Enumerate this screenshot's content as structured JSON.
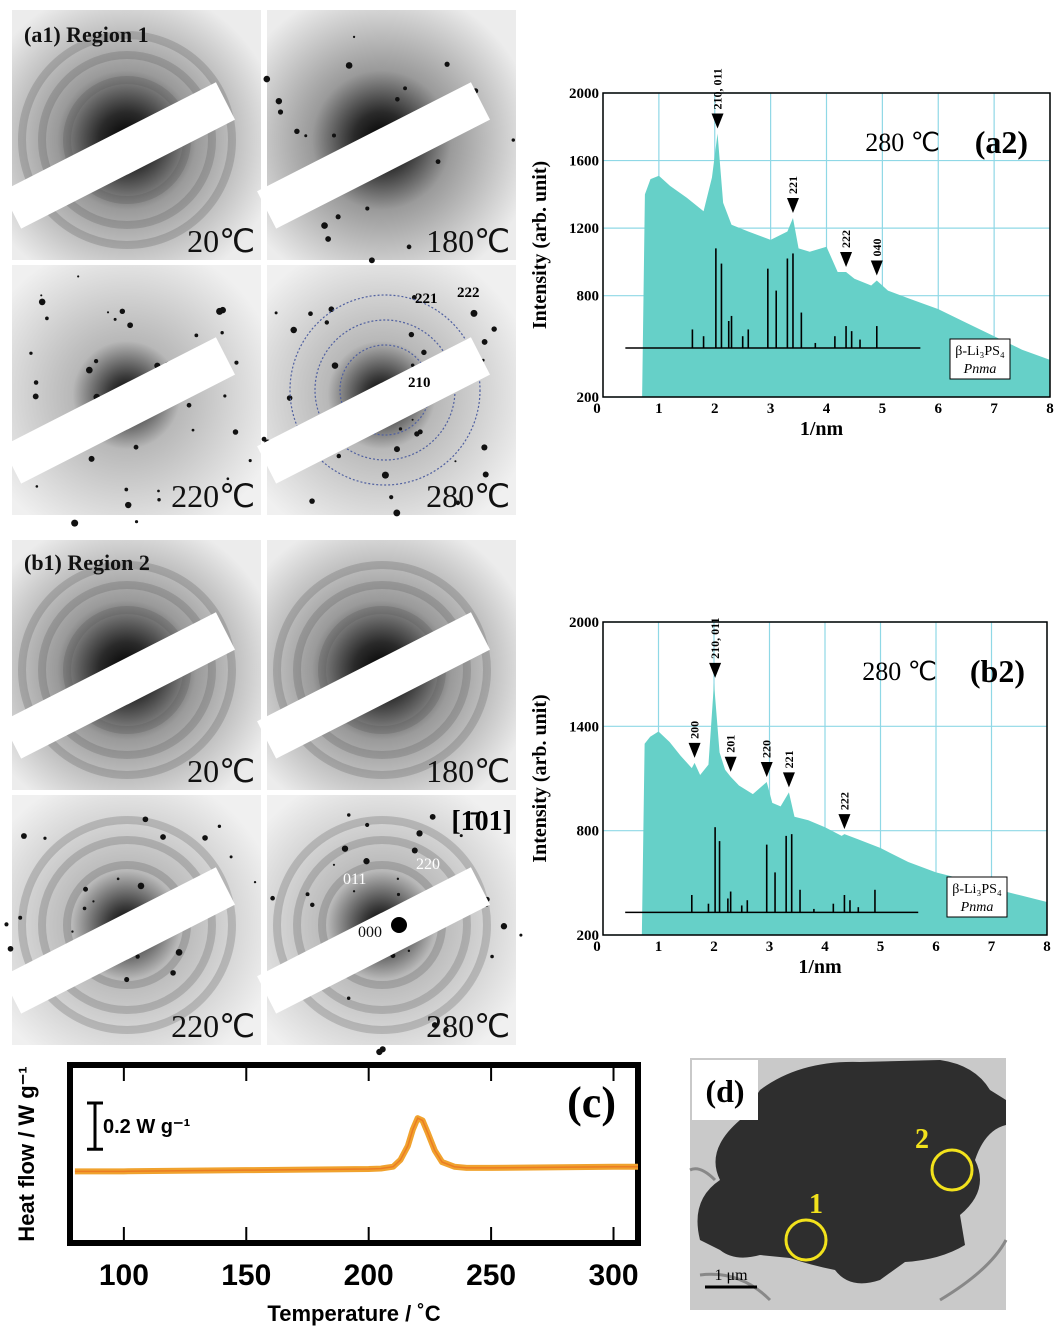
{
  "diffraction": {
    "region1": {
      "label": "(a1) Region 1",
      "temperatures": [
        "20℃",
        "180℃",
        "220℃",
        "280℃"
      ],
      "ring_labels": [
        "221",
        "222",
        "210"
      ]
    },
    "region2": {
      "label": "(b1) Region 2",
      "temperatures": [
        "20℃",
        "180℃",
        "220℃",
        "280℃"
      ],
      "zone_axis": "[1̄01]",
      "spot_labels": [
        "011",
        "220",
        "000"
      ]
    }
  },
  "chart_data": [
    {
      "type": "spectrum",
      "panel_label": "(a2)",
      "condition": "280 ℃",
      "xlabel": "1/nm",
      "ylabel": "Intensity (arb. unit)",
      "xlim": [
        0,
        8
      ],
      "ylim": [
        200,
        2000
      ],
      "xticks": [
        0,
        1,
        2,
        3,
        4,
        5,
        6,
        7,
        8
      ],
      "yticks": [
        200,
        800,
        1200,
        1600,
        2000
      ],
      "grid": true,
      "grid_color": "#8fd8e6",
      "color": "#66d0c8",
      "x": [
        0.7,
        0.75,
        0.85,
        1.0,
        1.2,
        1.5,
        1.8,
        1.95,
        2.05,
        2.15,
        2.3,
        2.6,
        3.0,
        3.3,
        3.4,
        3.5,
        3.7,
        4.0,
        4.2,
        4.35,
        4.5,
        4.8,
        4.9,
        5.1,
        5.5,
        6.0,
        6.5,
        7.0,
        7.5,
        8.0
      ],
      "values": [
        200,
        1400,
        1490,
        1510,
        1450,
        1380,
        1300,
        1500,
        1760,
        1350,
        1220,
        1180,
        1130,
        1180,
        1260,
        1080,
        1060,
        1090,
        940,
        940,
        900,
        860,
        890,
        830,
        780,
        720,
        640,
        560,
        480,
        420
      ],
      "reference": {
        "name": "β-Li₃PS₄",
        "space_group": "Pnma",
        "baseline": 490,
        "x": [
          1.6,
          1.8,
          2.02,
          2.12,
          2.25,
          2.3,
          2.5,
          2.6,
          2.95,
          3.1,
          3.3,
          3.4,
          3.55,
          3.8,
          4.15,
          4.35,
          4.45,
          4.6,
          4.9
        ],
        "values": [
          600,
          560,
          1080,
          990,
          650,
          680,
          560,
          600,
          960,
          830,
          1020,
          1050,
          700,
          520,
          560,
          620,
          590,
          540,
          620
        ]
      },
      "peaks": [
        {
          "label": "210, 011",
          "x": 2.05,
          "y": 1760
        },
        {
          "label": "221",
          "x": 3.4,
          "y": 1260
        },
        {
          "label": "222",
          "x": 4.35,
          "y": 940
        },
        {
          "label": "040",
          "x": 4.9,
          "y": 890
        }
      ]
    },
    {
      "type": "spectrum",
      "panel_label": "(b2)",
      "condition": "280 ℃",
      "xlabel": "1/nm",
      "ylabel": "Intensity (arb. unit)",
      "xlim": [
        0,
        8
      ],
      "ylim": [
        200,
        2000
      ],
      "xticks": [
        0,
        1,
        2,
        3,
        4,
        5,
        6,
        7,
        8
      ],
      "yticks": [
        200,
        800,
        1400,
        2000
      ],
      "grid": true,
      "grid_color": "#8fd8e6",
      "color": "#66d0c8",
      "x": [
        0.7,
        0.75,
        0.85,
        1.0,
        1.2,
        1.4,
        1.6,
        1.65,
        1.75,
        1.9,
        2.0,
        2.1,
        2.2,
        2.3,
        2.45,
        2.7,
        2.95,
        3.05,
        3.2,
        3.35,
        3.45,
        3.7,
        4.0,
        4.3,
        4.35,
        4.6,
        5.0,
        5.5,
        6.0,
        6.5,
        7.0,
        7.5,
        8.0
      ],
      "values": [
        200,
        1300,
        1340,
        1370,
        1310,
        1230,
        1160,
        1190,
        1120,
        1180,
        1650,
        1250,
        1150,
        1110,
        1060,
        1010,
        1080,
        960,
        940,
        1020,
        880,
        860,
        820,
        770,
        780,
        750,
        700,
        620,
        560,
        520,
        470,
        430,
        390
      ],
      "reference": {
        "name": "β-Li₃PS₄",
        "space_group": "Pnma",
        "baseline": 330,
        "x": [
          1.6,
          1.9,
          2.02,
          2.1,
          2.25,
          2.3,
          2.5,
          2.6,
          2.95,
          3.1,
          3.3,
          3.4,
          3.55,
          3.8,
          4.15,
          4.35,
          4.45,
          4.6,
          4.9
        ],
        "values": [
          430,
          380,
          820,
          740,
          410,
          450,
          370,
          400,
          720,
          560,
          770,
          780,
          460,
          350,
          380,
          430,
          400,
          360,
          460
        ]
      },
      "peaks": [
        {
          "label": "200",
          "x": 1.65,
          "y": 1190
        },
        {
          "label": "210, 011",
          "x": 2.02,
          "y": 1650
        },
        {
          "label": "201",
          "x": 2.3,
          "y": 1110
        },
        {
          "label": "220",
          "x": 2.95,
          "y": 1080
        },
        {
          "label": "221",
          "x": 3.35,
          "y": 1020
        },
        {
          "label": "222",
          "x": 4.35,
          "y": 780
        }
      ]
    },
    {
      "type": "dsc",
      "panel_label": "(c)",
      "xlabel": "Temperature / ˚C",
      "ylabel": "Heat flow / W g⁻¹",
      "xlim": [
        78,
        310
      ],
      "ylim": [
        0,
        0.77
      ],
      "xticks": [
        100,
        150,
        200,
        250,
        300
      ],
      "color": "#f0a22e",
      "scale_bar": {
        "value": 0.2,
        "label": "0.2 W g⁻¹"
      },
      "x": [
        80,
        100,
        150,
        200,
        205,
        210,
        213,
        216,
        218,
        220,
        222,
        224,
        227,
        230,
        235,
        240,
        250,
        300,
        310
      ],
      "values": [
        0.31,
        0.31,
        0.315,
        0.32,
        0.322,
        0.33,
        0.36,
        0.42,
        0.49,
        0.54,
        0.53,
        0.48,
        0.4,
        0.35,
        0.33,
        0.325,
        0.325,
        0.33,
        0.33
      ]
    }
  ],
  "micrograph": {
    "label": "(d)",
    "areas": [
      "1",
      "2"
    ],
    "scale_bar": "1 μm"
  }
}
